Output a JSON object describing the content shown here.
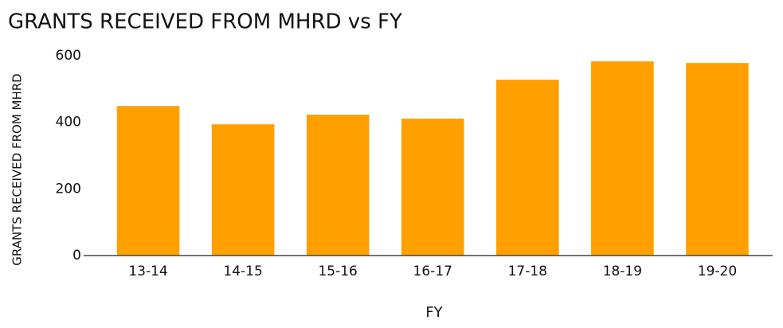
{
  "chart_data": {
    "type": "bar",
    "title": "GRANTS RECEIVED FROM MHRD vs FY",
    "x_label": "FY",
    "y_label": "GRANTS RECEIVED FROM MHRD",
    "categories": [
      "13-14",
      "14-15",
      "15-16",
      "16-17",
      "17-18",
      "18-19",
      "19-20"
    ],
    "values": [
      449,
      394,
      423,
      411,
      528,
      583,
      578
    ],
    "color": "#ff9f00",
    "ylim": [
      0,
      600
    ],
    "yticks": [
      0,
      200,
      400,
      600
    ],
    "grid": false
  }
}
